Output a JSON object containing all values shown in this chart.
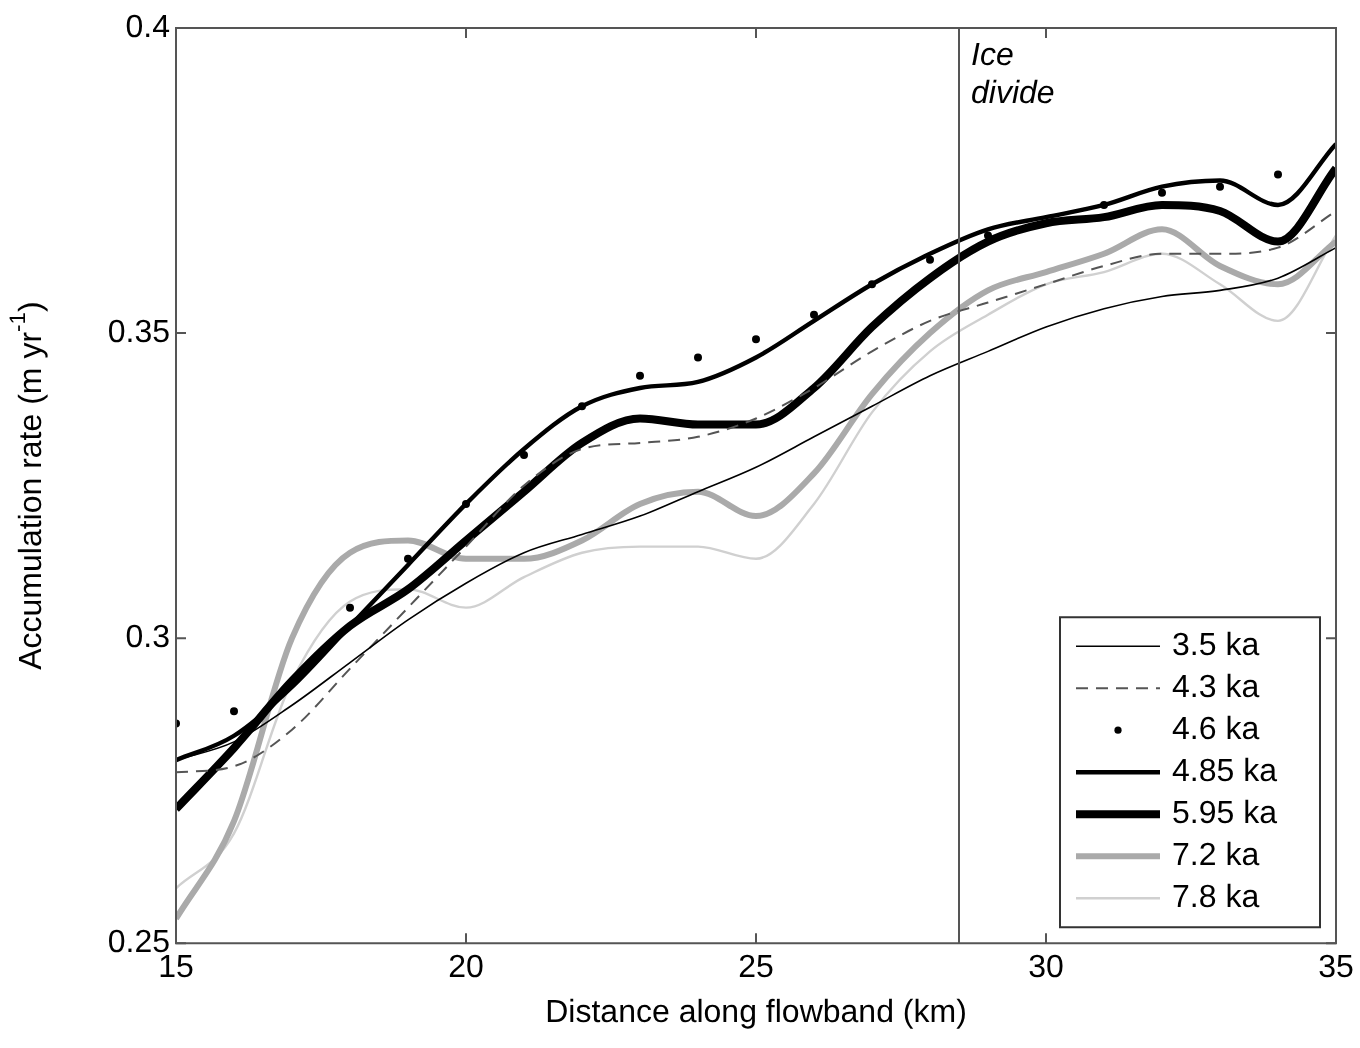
{
  "chart_data": {
    "type": "line",
    "xlabel": "Distance along flowband (km)",
    "ylabel": "Accumulation rate (m yr$^{-1}$)",
    "x": [
      15,
      16,
      17,
      18,
      19,
      20,
      21,
      22,
      23,
      24,
      25,
      26,
      27,
      28,
      29,
      30,
      31,
      32,
      33,
      34,
      35
    ],
    "xlim": [
      15,
      35
    ],
    "xticks": [
      15,
      20,
      25,
      30,
      35
    ],
    "ylim": [
      0.25,
      0.4
    ],
    "yticks": [
      0.25,
      0.3,
      0.35,
      0.4
    ],
    "grid": false,
    "legend": "bottom right",
    "marker": "none",
    "ref_lines": [
      {
        "axis": "x",
        "value": 28.5,
        "label": "Ice divide",
        "color": "#555555"
      }
    ],
    "series": [
      {
        "name": "3.5 ka",
        "color": "#000000",
        "values": [
          0.28,
          0.283,
          0.289,
          0.296,
          0.303,
          0.309,
          0.314,
          0.317,
          0.32,
          0.324,
          0.328,
          0.333,
          0.338,
          0.343,
          0.347,
          0.351,
          0.354,
          0.356,
          0.357,
          0.359,
          0.364
        ]
      },
      {
        "name": "4.3 ka",
        "color": "#555555",
        "line_style": "dashed",
        "values": [
          0.278,
          0.279,
          0.285,
          0.295,
          0.305,
          0.315,
          0.325,
          0.331,
          0.332,
          0.333,
          0.336,
          0.341,
          0.347,
          0.352,
          0.355,
          0.358,
          0.361,
          0.363,
          0.363,
          0.364,
          0.37
        ]
      },
      {
        "name": "4.6 ka",
        "color": "#000000",
        "type": "scatter",
        "marker": "circle",
        "values": [
          0.286,
          0.288,
          null,
          0.305,
          0.313,
          0.322,
          0.33,
          0.338,
          0.343,
          0.346,
          0.349,
          0.353,
          0.358,
          0.362,
          0.366,
          null,
          0.371,
          0.373,
          0.374,
          0.376,
          null
        ]
      },
      {
        "name": "4.85 ka",
        "color": "#000000",
        "values": [
          0.28,
          0.284,
          0.292,
          0.302,
          0.312,
          0.322,
          0.331,
          0.338,
          0.341,
          0.342,
          0.346,
          0.352,
          0.358,
          0.363,
          0.367,
          0.369,
          0.371,
          0.374,
          0.375,
          0.371,
          0.381
        ]
      },
      {
        "name": "5.95 ka",
        "color": "#000000",
        "values": [
          0.272,
          0.282,
          0.293,
          0.302,
          0.308,
          0.316,
          0.324,
          0.332,
          0.336,
          0.335,
          0.335,
          0.341,
          0.351,
          0.359,
          0.365,
          0.368,
          0.369,
          0.371,
          0.37,
          0.365,
          0.377
        ]
      },
      {
        "name": "7.2 ka",
        "color": "#aaaaaa",
        "values": [
          0.254,
          0.27,
          0.3,
          0.314,
          0.316,
          0.313,
          0.313,
          0.316,
          0.322,
          0.324,
          0.32,
          0.327,
          0.34,
          0.35,
          0.357,
          0.36,
          0.363,
          0.367,
          0.361,
          0.358,
          0.365
        ]
      },
      {
        "name": "7.8 ka",
        "color": "#d0d0d0",
        "values": [
          0.259,
          0.268,
          0.293,
          0.306,
          0.308,
          0.305,
          0.31,
          0.314,
          0.315,
          0.315,
          0.313,
          0.322,
          0.337,
          0.347,
          0.353,
          0.358,
          0.36,
          0.363,
          0.358,
          0.352,
          0.366
        ]
      }
    ]
  }
}
